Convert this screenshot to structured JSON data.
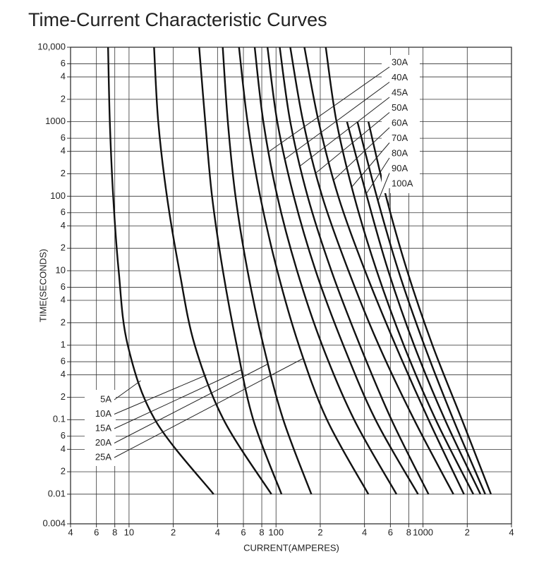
{
  "chart_data": {
    "type": "line",
    "title": "Time-Current Characteristic Curves",
    "x_label": "CURRENT(AMPERES)",
    "y_label": "TIME(SECONDS)",
    "log_x": true,
    "log_y": true,
    "grid": true,
    "color": "#111111",
    "xlim": [
      4,
      4000
    ],
    "ylim": [
      0.004,
      10000
    ],
    "xticks": [
      4,
      6,
      8,
      10,
      {
        "value": 20,
        "label": "2"
      },
      {
        "value": 40,
        "label": "4"
      },
      {
        "value": 60,
        "label": "6"
      },
      {
        "value": 80,
        "label": "8"
      },
      100,
      {
        "value": 200,
        "label": "2"
      },
      {
        "value": 400,
        "label": "4"
      },
      {
        "value": 600,
        "label": "6"
      },
      {
        "value": 800,
        "label": "8"
      },
      1000,
      {
        "value": 2000,
        "label": "2"
      },
      {
        "value": 4000,
        "label": "4"
      }
    ],
    "yticks": [
      {
        "value": 10000,
        "label": "10,000"
      },
      {
        "value": 6000,
        "label": "6"
      },
      {
        "value": 4000,
        "label": "4"
      },
      {
        "value": 2000,
        "label": "2"
      },
      1000,
      {
        "value": 600,
        "label": "6"
      },
      {
        "value": 400,
        "label": "4"
      },
      {
        "value": 200,
        "label": "2"
      },
      100,
      {
        "value": 60,
        "label": "6"
      },
      {
        "value": 40,
        "label": "4"
      },
      {
        "value": 20,
        "label": "2"
      },
      10,
      6,
      4,
      2,
      1,
      {
        "value": 0.6,
        "label": "6"
      },
      {
        "value": 0.4,
        "label": "4"
      },
      {
        "value": 0.2,
        "label": "2"
      },
      0.1,
      {
        "value": 0.06,
        "label": "6"
      },
      {
        "value": 0.04,
        "label": "4"
      },
      {
        "value": 0.02,
        "label": "2"
      },
      0.01,
      0.004
    ],
    "series": [
      {
        "name": "5A",
        "x": [
          7.2,
          7.4,
          7.8,
          8.5,
          9.8,
          15,
          37.6
        ],
        "values": [
          10000,
          1000,
          100,
          10,
          1,
          0.1,
          0.01
        ]
      },
      {
        "name": "10A",
        "x": [
          14.8,
          15.8,
          18.1,
          22,
          28,
          44,
          93
        ],
        "values": [
          10000,
          1000,
          100,
          10,
          1,
          0.1,
          0.01
        ]
      },
      {
        "name": "15A",
        "x": [
          30,
          33,
          36.7,
          43.5,
          54,
          70,
          109
        ],
        "values": [
          10000,
          1000,
          100,
          10,
          1,
          0.1,
          0.01
        ]
      },
      {
        "name": "20A",
        "x": [
          43.4,
          47,
          53,
          64,
          82,
          112,
          174
        ],
        "values": [
          10000,
          1000,
          100,
          10,
          1,
          0.1,
          0.01
        ]
      },
      {
        "name": "25A",
        "x": [
          56,
          64,
          78,
          102,
          143,
          222,
          425
        ],
        "values": [
          10000,
          1000,
          100,
          10,
          1,
          0.1,
          0.01
        ]
      },
      {
        "name": "30A",
        "x": [
          71.6,
          82,
          102,
          139,
          206,
          340,
          660
        ],
        "values": [
          10000,
          1000,
          100,
          10,
          1,
          0.1,
          0.01
        ]
      },
      {
        "name": "40A",
        "x": [
          87.5,
          102,
          132,
          186,
          287,
          475,
          925
        ],
        "values": [
          10000,
          1000,
          100,
          10,
          1,
          0.1,
          0.01
        ]
      },
      {
        "name": "45A",
        "x": [
          106,
          125,
          164,
          238,
          372,
          610,
          1090
        ],
        "values": [
          10000,
          1000,
          100,
          10,
          1,
          0.1,
          0.01
        ]
      },
      {
        "name": "50A",
        "x": [
          125,
          153,
          206,
          311,
          500,
          870,
          1610
        ],
        "values": [
          10000,
          1000,
          100,
          10,
          1,
          0.1,
          0.01
        ]
      },
      {
        "name": "60A",
        "x": [
          156,
          195,
          265,
          403,
          650,
          1090,
          1900
        ],
        "values": [
          10000,
          1000,
          100,
          10,
          1,
          0.1,
          0.01
        ]
      },
      {
        "name": "70A",
        "x": [
          218,
          258,
          340,
          484,
          740,
          1220,
          2200
        ],
        "values": [
          10000,
          1000,
          100,
          10,
          1,
          0.1,
          0.01
        ]
      },
      {
        "name": "80A",
        "x": [
          304,
          415,
          580,
          870,
          1410,
          2460
        ],
        "values": [
          1000,
          100,
          10,
          1,
          0.1,
          0.01
        ]
      },
      {
        "name": "90A",
        "x": [
          358,
          484,
          680,
          1020,
          1610,
          2650
        ],
        "values": [
          1000,
          100,
          10,
          1,
          0.1,
          0.01
        ]
      },
      {
        "name": "100A",
        "x": [
          425,
          560,
          780,
          1160,
          1840,
          2900
        ],
        "values": [
          1000,
          100,
          10,
          1,
          0.1,
          0.01
        ]
      }
    ]
  }
}
